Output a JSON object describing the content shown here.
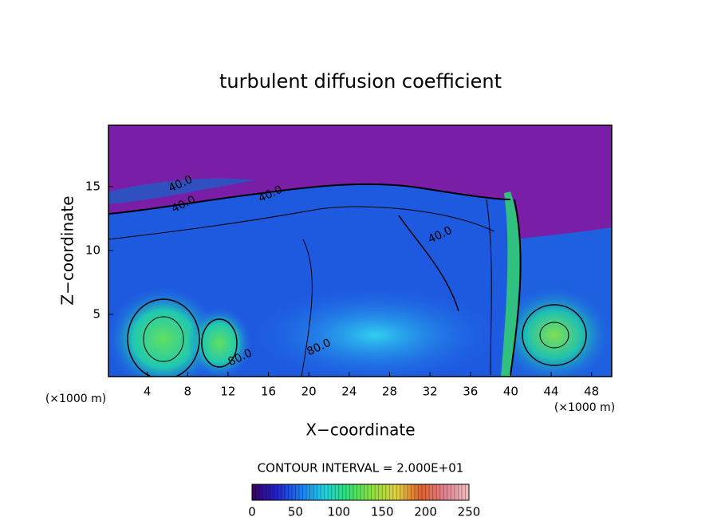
{
  "chart_data": {
    "type": "contour",
    "title": "turbulent diffusion coefficient",
    "xlabel": "X−coordinate",
    "ylabel": "Z−coordinate",
    "axis_unit": "(×1000 m)",
    "xlim": [
      0,
      50
    ],
    "xticks": [
      4,
      8,
      12,
      16,
      20,
      24,
      28,
      32,
      36,
      40,
      44,
      48
    ],
    "ylim": [
      0,
      19.8
    ],
    "yticks": [
      5,
      10,
      15
    ],
    "contour_interval_label": "CONTOUR INTERVAL = 2.000E+01",
    "contour_labels": [
      {
        "label": "40.0",
        "x": 7.3,
        "y": 15.2
      },
      {
        "label": "40.0",
        "x": 7.6,
        "y": 13.6
      },
      {
        "label": "40.0",
        "x": 16.2,
        "y": 14.4
      },
      {
        "label": "40.0",
        "x": 33,
        "y": 11.2
      },
      {
        "label": "80.0",
        "x": 21,
        "y": 2.4
      },
      {
        "label": "80.0",
        "x": 13.2,
        "y": 1.6
      }
    ],
    "colorbar": {
      "clim": [
        0,
        250
      ],
      "ticks": [
        0,
        50,
        100,
        150,
        200,
        250
      ],
      "colors": [
        "#3a0060",
        "#2020c8",
        "#1e78f0",
        "#20d0e0",
        "#30e070",
        "#90e040",
        "#e0d040",
        "#e06030",
        "#e08090",
        "#f0c0c0"
      ]
    }
  }
}
